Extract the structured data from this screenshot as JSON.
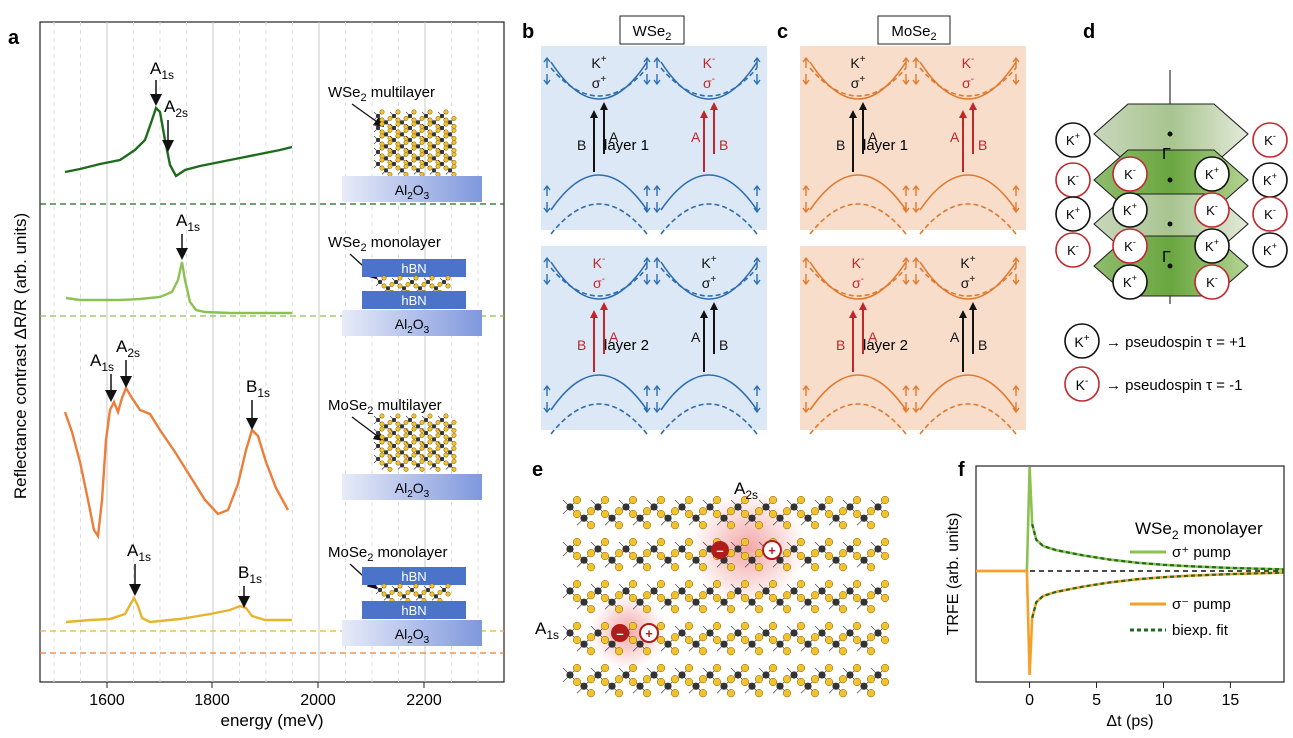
{
  "panel_labels": {
    "a": "a",
    "b": "b",
    "c": "c",
    "d": "d",
    "e": "e",
    "f": "f"
  },
  "panel_a": {
    "ylabel": "Reflectance contrast ΔR/R (arb. units)",
    "xlabel": "energy (meV)",
    "xticks": [
      "1600",
      "1800",
      "2000",
      "2200"
    ],
    "curves": [
      {
        "name": "WSe2 multilayer",
        "color": "#1e6b1e",
        "peaks": [
          {
            "label": "A",
            "sub": "1s"
          },
          {
            "label": "A",
            "sub": "2s"
          }
        ]
      },
      {
        "name": "WSe2 monolayer",
        "color": "#8cc152",
        "peaks": [
          {
            "label": "A",
            "sub": "1s"
          }
        ]
      },
      {
        "name": "MoSe2 multilayer",
        "color": "#ec7d3a",
        "peaks": [
          {
            "label": "A",
            "sub": "1s"
          },
          {
            "label": "A",
            "sub": "2s"
          },
          {
            "label": "B",
            "sub": "1s"
          }
        ]
      },
      {
        "name": "MoSe2 monolayer",
        "color": "#e8b430",
        "peaks": [
          {
            "label": "A",
            "sub": "1s"
          },
          {
            "label": "B",
            "sub": "1s"
          }
        ]
      }
    ],
    "samples": {
      "wse2_ml": {
        "m": "WSe",
        "s": "2",
        "t": " multilayer"
      },
      "wse2_1l": {
        "m": "WSe",
        "s": "2",
        "t": " monolayer"
      },
      "mose2_ml": {
        "m": "MoSe",
        "s": "2",
        "t": " multilayer"
      },
      "mose2_1l": {
        "m": "MoSe",
        "s": "2",
        "t": " monolayer"
      },
      "hbn": "hBN",
      "sub_m": "Al",
      "sub_s": "2",
      "sub_o": "O",
      "sub_s2": "3"
    }
  },
  "panel_b": {
    "title_m": "WSe",
    "title_s": "2"
  },
  "panel_c": {
    "title_m": "MoSe",
    "title_s": "2"
  },
  "bands": {
    "layer1": "layer 1",
    "layer2": "layer 2",
    "Kplus": "K",
    "Kminus": "K",
    "plus": "+",
    "minus": "-",
    "sigma_plus": "σ",
    "A": "A",
    "B": "B"
  },
  "panel_d": {
    "gamma": "Γ",
    "legend_plus": "→ pseudospin τ = +1",
    "legend_minus": "→ pseudospin τ = -1"
  },
  "panel_e": {
    "A2s_m": "A",
    "A2s_s": "2s",
    "A1s_m": "A",
    "A1s_s": "1s"
  },
  "panel_f": {
    "title_m": "WSe",
    "title_s": "2",
    "title_t": " monolayer",
    "ylabel": "TRFE (arb. units)",
    "xlabel": "Δt (ps)",
    "legend": [
      "σ⁺ pump",
      "σ⁻ pump",
      "biexp. fit"
    ],
    "chart_data": {
      "type": "line",
      "xlabel": "Δt (ps)",
      "ylabel": "TRFE (arb. units)",
      "xlim": [
        -4,
        19
      ],
      "x": [
        -4,
        -0.2,
        0,
        0.2,
        0.5,
        1,
        2,
        4,
        6,
        8,
        10,
        12,
        15,
        19
      ],
      "series": [
        {
          "name": "σ⁺ pump",
          "color": "#8cc152",
          "values": [
            0,
            0,
            1,
            0.45,
            0.3,
            0.24,
            0.2,
            0.15,
            0.11,
            0.08,
            0.06,
            0.045,
            0.03,
            0.015
          ]
        },
        {
          "name": "σ⁻ pump",
          "color": "#f5a02a",
          "values": [
            0,
            0,
            -1,
            -0.45,
            -0.3,
            -0.24,
            -0.2,
            -0.15,
            -0.11,
            -0.08,
            -0.06,
            -0.045,
            -0.03,
            -0.015
          ]
        }
      ]
    },
    "xticks": [
      "0",
      "5",
      "10",
      "15"
    ]
  }
}
